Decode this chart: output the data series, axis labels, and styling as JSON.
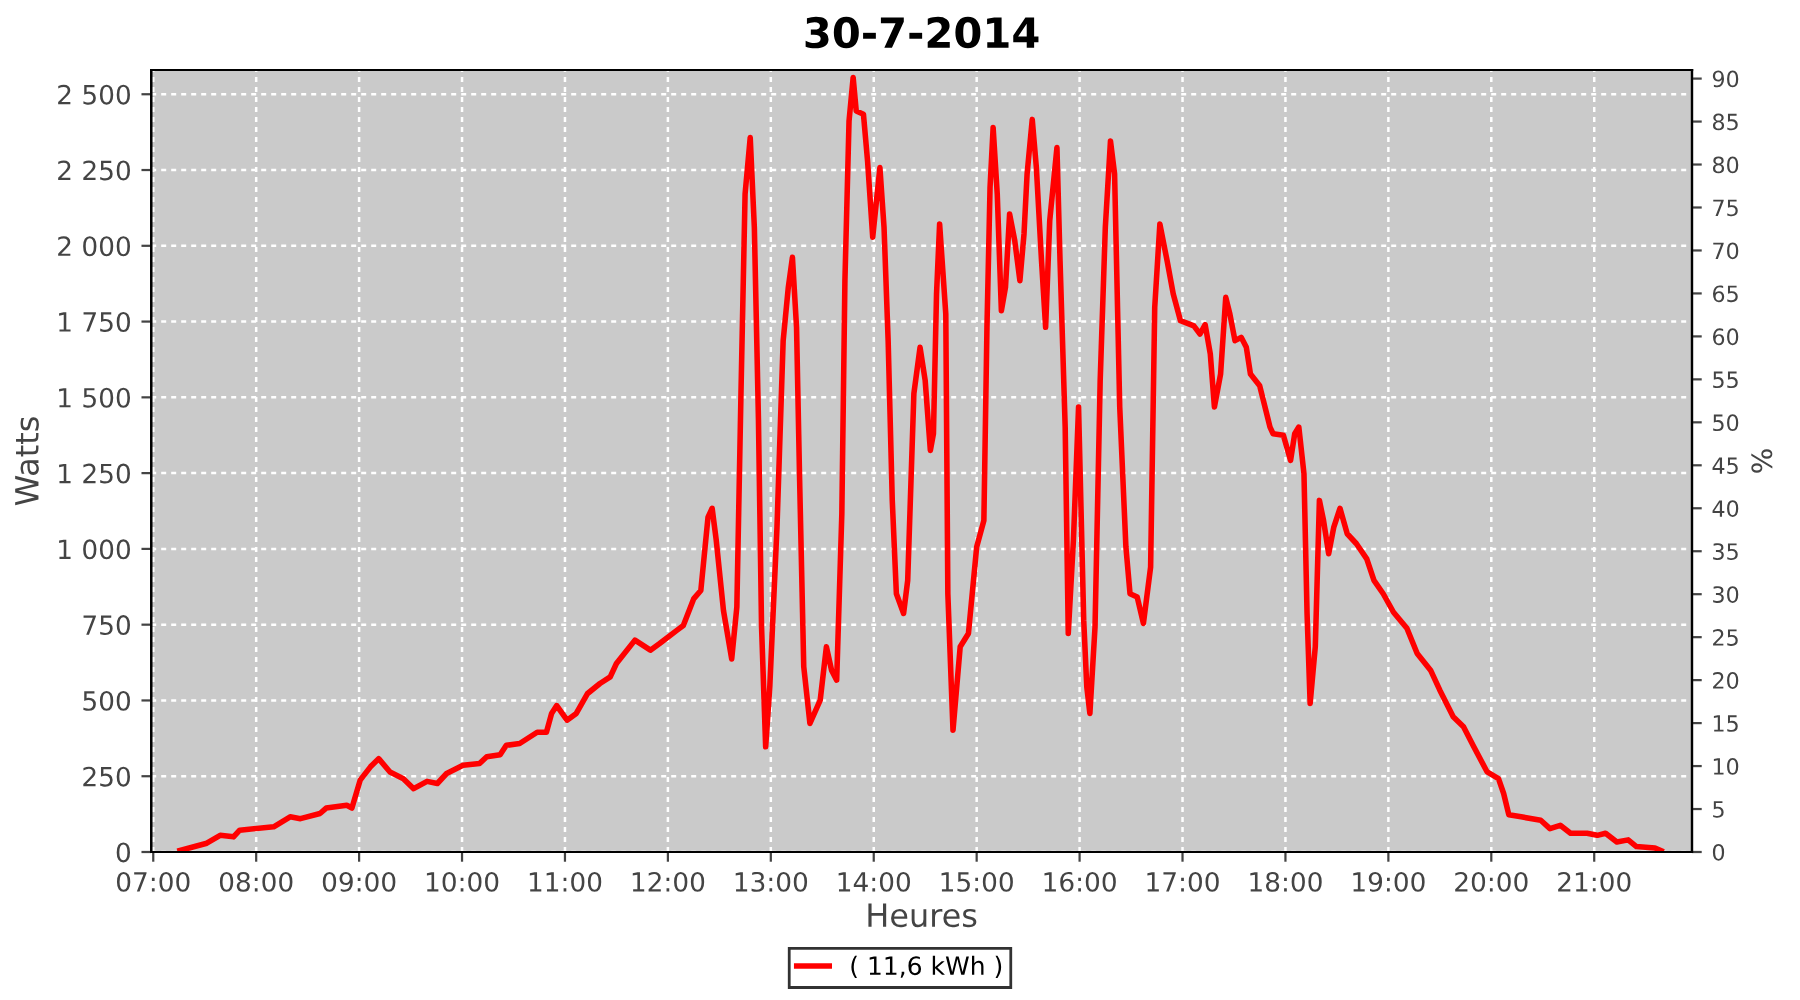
{
  "chart_data": {
    "type": "line",
    "title": "30-7-2014",
    "xlabel": "Heures",
    "ylabel": "Watts",
    "y2label": "%",
    "xlim": [
      6.98,
      21.95
    ],
    "xticks": [
      {
        "value": 7,
        "label": "07:00"
      },
      {
        "value": 8,
        "label": "08:00"
      },
      {
        "value": 9,
        "label": "09:00"
      },
      {
        "value": 10,
        "label": "10:00"
      },
      {
        "value": 11,
        "label": "11:00"
      },
      {
        "value": 12,
        "label": "12:00"
      },
      {
        "value": 13,
        "label": "13:00"
      },
      {
        "value": 14,
        "label": "14:00"
      },
      {
        "value": 15,
        "label": "15:00"
      },
      {
        "value": 16,
        "label": "16:00"
      },
      {
        "value": 17,
        "label": "17:00"
      },
      {
        "value": 18,
        "label": "18:00"
      },
      {
        "value": 19,
        "label": "19:00"
      },
      {
        "value": 20,
        "label": "20:00"
      },
      {
        "value": 21,
        "label": "21:00"
      }
    ],
    "ylim": [
      0,
      2580
    ],
    "yticks": [
      0,
      250,
      500,
      750,
      {
        "value": 1000,
        "label": "1 000"
      },
      {
        "value": 1250,
        "label": "1 250"
      },
      {
        "value": 1500,
        "label": "1 500"
      },
      {
        "value": 1750,
        "label": "1 750"
      },
      {
        "value": 2000,
        "label": "2 000"
      },
      {
        "value": 2250,
        "label": "2 250"
      },
      {
        "value": 2500,
        "label": "2 500"
      }
    ],
    "y2lim": [
      0,
      91
    ],
    "y2ticks": [
      0,
      5,
      10,
      15,
      20,
      25,
      30,
      35,
      40,
      45,
      50,
      55,
      60,
      65,
      70,
      75,
      80,
      85,
      90
    ],
    "grid": true,
    "legend": "bottom",
    "marker": "none",
    "line_style": "solid",
    "series": [
      {
        "name": "( 11,6 kWh )",
        "color": "#ff0000",
        "x": [
          7.26,
          7.52,
          7.65,
          7.78,
          7.84,
          8.17,
          8.33,
          8.43,
          8.62,
          8.68,
          8.88,
          8.93,
          9.01,
          9.11,
          9.19,
          9.3,
          9.43,
          9.53,
          9.66,
          9.76,
          9.85,
          10.01,
          10.17,
          10.24,
          10.37,
          10.43,
          10.56,
          10.73,
          10.82,
          10.87,
          10.92,
          11.02,
          11.11,
          11.22,
          11.34,
          11.44,
          11.5,
          11.68,
          11.83,
          11.92,
          12.09,
          12.15,
          12.25,
          12.32,
          12.39,
          12.43,
          12.47,
          12.54,
          12.62,
          12.67,
          12.71,
          12.75,
          12.8,
          12.84,
          12.88,
          12.91,
          12.95,
          12.99,
          13.06,
          13.12,
          13.17,
          13.21,
          13.25,
          13.28,
          13.32,
          13.38,
          13.48,
          13.54,
          13.59,
          13.64,
          13.69,
          13.72,
          13.76,
          13.8,
          13.83,
          13.9,
          13.94,
          13.99,
          14.06,
          14.1,
          14.14,
          14.18,
          14.22,
          14.29,
          14.33,
          14.39,
          14.45,
          14.5,
          14.55,
          14.58,
          14.61,
          14.64,
          14.7,
          14.72,
          14.77,
          14.84,
          14.92,
          15.0,
          15.07,
          15.1,
          15.13,
          15.16,
          15.2,
          15.24,
          15.28,
          15.32,
          15.37,
          15.42,
          15.46,
          15.49,
          15.54,
          15.58,
          15.63,
          15.67,
          15.71,
          15.78,
          15.81,
          15.86,
          15.89,
          15.94,
          15.99,
          16.04,
          16.07,
          16.1,
          16.15,
          16.2,
          16.25,
          16.3,
          16.34,
          16.39,
          16.45,
          16.49,
          16.56,
          16.62,
          16.69,
          16.73,
          16.78,
          16.85,
          16.91,
          16.98,
          17.11,
          17.17,
          17.22,
          17.27,
          17.31,
          17.37,
          17.42,
          17.46,
          17.51,
          17.57,
          17.62,
          17.66,
          17.75,
          17.85,
          17.88,
          17.98,
          18.05,
          18.09,
          18.13,
          18.18,
          18.21,
          18.24,
          18.29,
          18.33,
          18.37,
          18.42,
          18.47,
          18.53,
          18.6,
          18.69,
          18.79,
          18.86,
          18.95,
          19.05,
          19.18,
          19.28,
          19.41,
          19.5,
          19.63,
          19.73,
          19.83,
          19.96,
          20.07,
          20.12,
          20.17,
          20.29,
          20.48,
          20.57,
          20.67,
          20.77,
          20.93,
          21.03,
          21.11,
          21.22,
          21.33,
          21.41,
          21.59,
          21.65
        ],
        "values": [
          5,
          29,
          55,
          50,
          72,
          83,
          116,
          110,
          127,
          145,
          154,
          145,
          237,
          281,
          308,
          264,
          242,
          209,
          233,
          226,
          259,
          286,
          292,
          314,
          321,
          352,
          358,
          395,
          395,
          457,
          483,
          435,
          457,
          523,
          556,
          578,
          622,
          699,
          666,
          688,
          732,
          747,
          835,
          863,
          1105,
          1134,
          1028,
          797,
          637,
          808,
          1512,
          2171,
          2357,
          2061,
          1424,
          743,
          347,
          545,
          1072,
          1687,
          1863,
          1962,
          1731,
          1226,
          611,
          424,
          501,
          677,
          600,
          567,
          1116,
          1885,
          2412,
          2555,
          2445,
          2434,
          2280,
          2028,
          2258,
          2061,
          1687,
          1160,
          852,
          787,
          896,
          1512,
          1665,
          1555,
          1325,
          1380,
          1841,
          2072,
          1775,
          852,
          402,
          677,
          721,
          1006,
          1094,
          1731,
          2193,
          2390,
          2171,
          1786,
          1863,
          2105,
          2017,
          1885,
          2039,
          2237,
          2417,
          2258,
          1951,
          1731,
          2083,
          2324,
          1951,
          1402,
          721,
          1028,
          1468,
          765,
          545,
          457,
          743,
          1555,
          2061,
          2346,
          2237,
          1468,
          1006,
          852,
          841,
          754,
          940,
          1797,
          2072,
          1951,
          1841,
          1753,
          1736,
          1709,
          1740,
          1643,
          1468,
          1577,
          1830,
          1775,
          1687,
          1698,
          1665,
          1577,
          1538,
          1402,
          1380,
          1375,
          1292,
          1380,
          1402,
          1248,
          787,
          490,
          677,
          1160,
          1094,
          984,
          1072,
          1134,
          1050,
          1017,
          967,
          896,
          852,
          791,
          738,
          655,
          600,
          534,
          446,
          413,
          347,
          264,
          242,
          193,
          123,
          116,
          105,
          77,
          88,
          62,
          62,
          55,
          62,
          33,
          40,
          18,
          13,
          4
        ]
      }
    ]
  }
}
